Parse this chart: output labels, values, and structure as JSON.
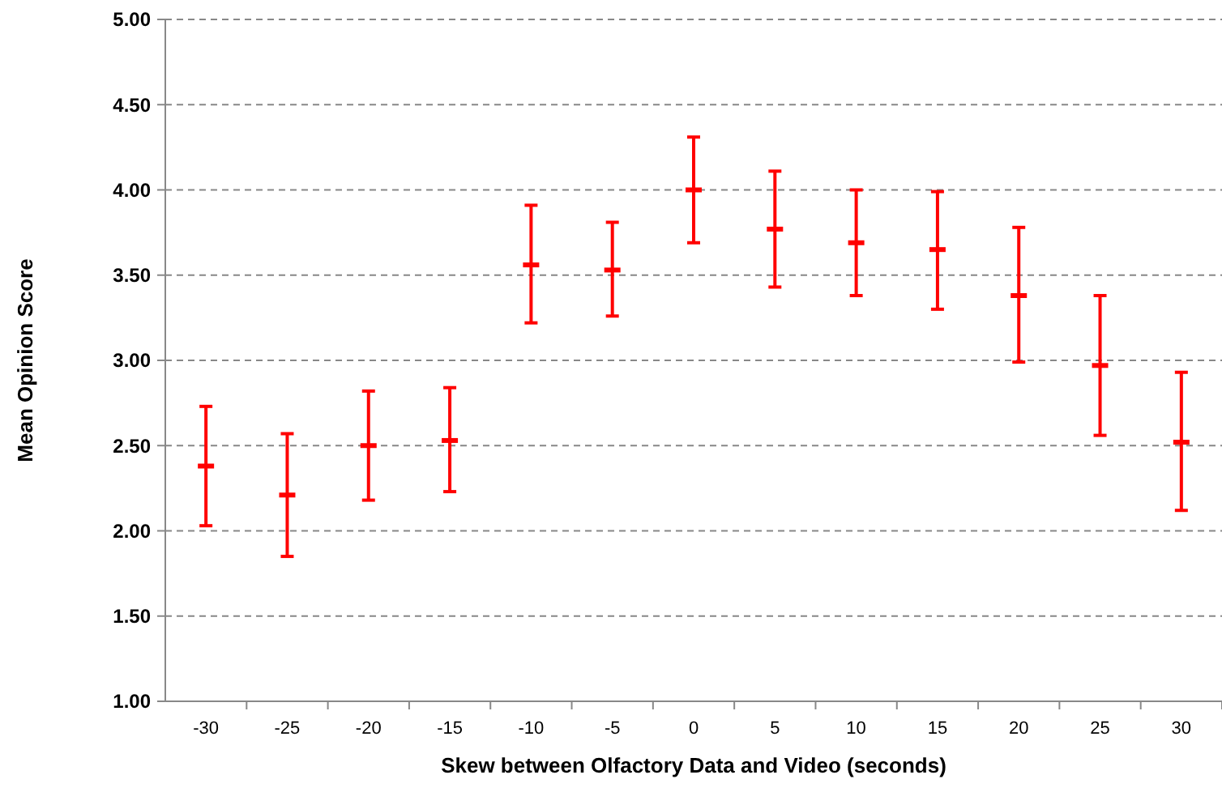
{
  "chart_data": {
    "type": "scatter",
    "xlabel": "Skew between Olfactory Data and Video (seconds)",
    "ylabel": "Mean Opinion Score",
    "categories": [
      "-30",
      "-25",
      "-20",
      "-15",
      "-10",
      "-5",
      "0",
      "5",
      "10",
      "15",
      "20",
      "25",
      "30"
    ],
    "series": [
      {
        "color": "#ff0000",
        "values": [
          2.38,
          2.21,
          2.5,
          2.53,
          3.56,
          3.53,
          4.0,
          3.77,
          3.69,
          3.65,
          3.38,
          2.97,
          2.52
        ],
        "errors": [
          [
            2.03,
            2.73
          ],
          [
            1.85,
            2.57
          ],
          [
            2.18,
            2.82
          ],
          [
            2.23,
            2.84
          ],
          [
            3.22,
            3.91
          ],
          [
            3.26,
            3.81
          ],
          [
            3.69,
            4.31
          ],
          [
            3.43,
            4.11
          ],
          [
            3.38,
            4.0
          ],
          [
            3.3,
            3.99
          ],
          [
            2.99,
            3.78
          ],
          [
            2.56,
            3.38
          ],
          [
            2.12,
            2.93
          ]
        ]
      }
    ],
    "ylim": [
      1,
      5
    ],
    "yticks": [
      {
        "value": 1,
        "label": "1.00"
      },
      {
        "value": 1.5,
        "label": "1.50"
      },
      {
        "value": 2,
        "label": "2.00"
      },
      {
        "value": 2.5,
        "label": "2.50"
      },
      {
        "value": 3,
        "label": "3.00"
      },
      {
        "value": 3.5,
        "label": "3.50"
      },
      {
        "value": 4,
        "label": "4.00"
      },
      {
        "value": 4.5,
        "label": "4.50"
      },
      {
        "value": 5,
        "label": "5.00"
      }
    ],
    "grid": "y"
  }
}
